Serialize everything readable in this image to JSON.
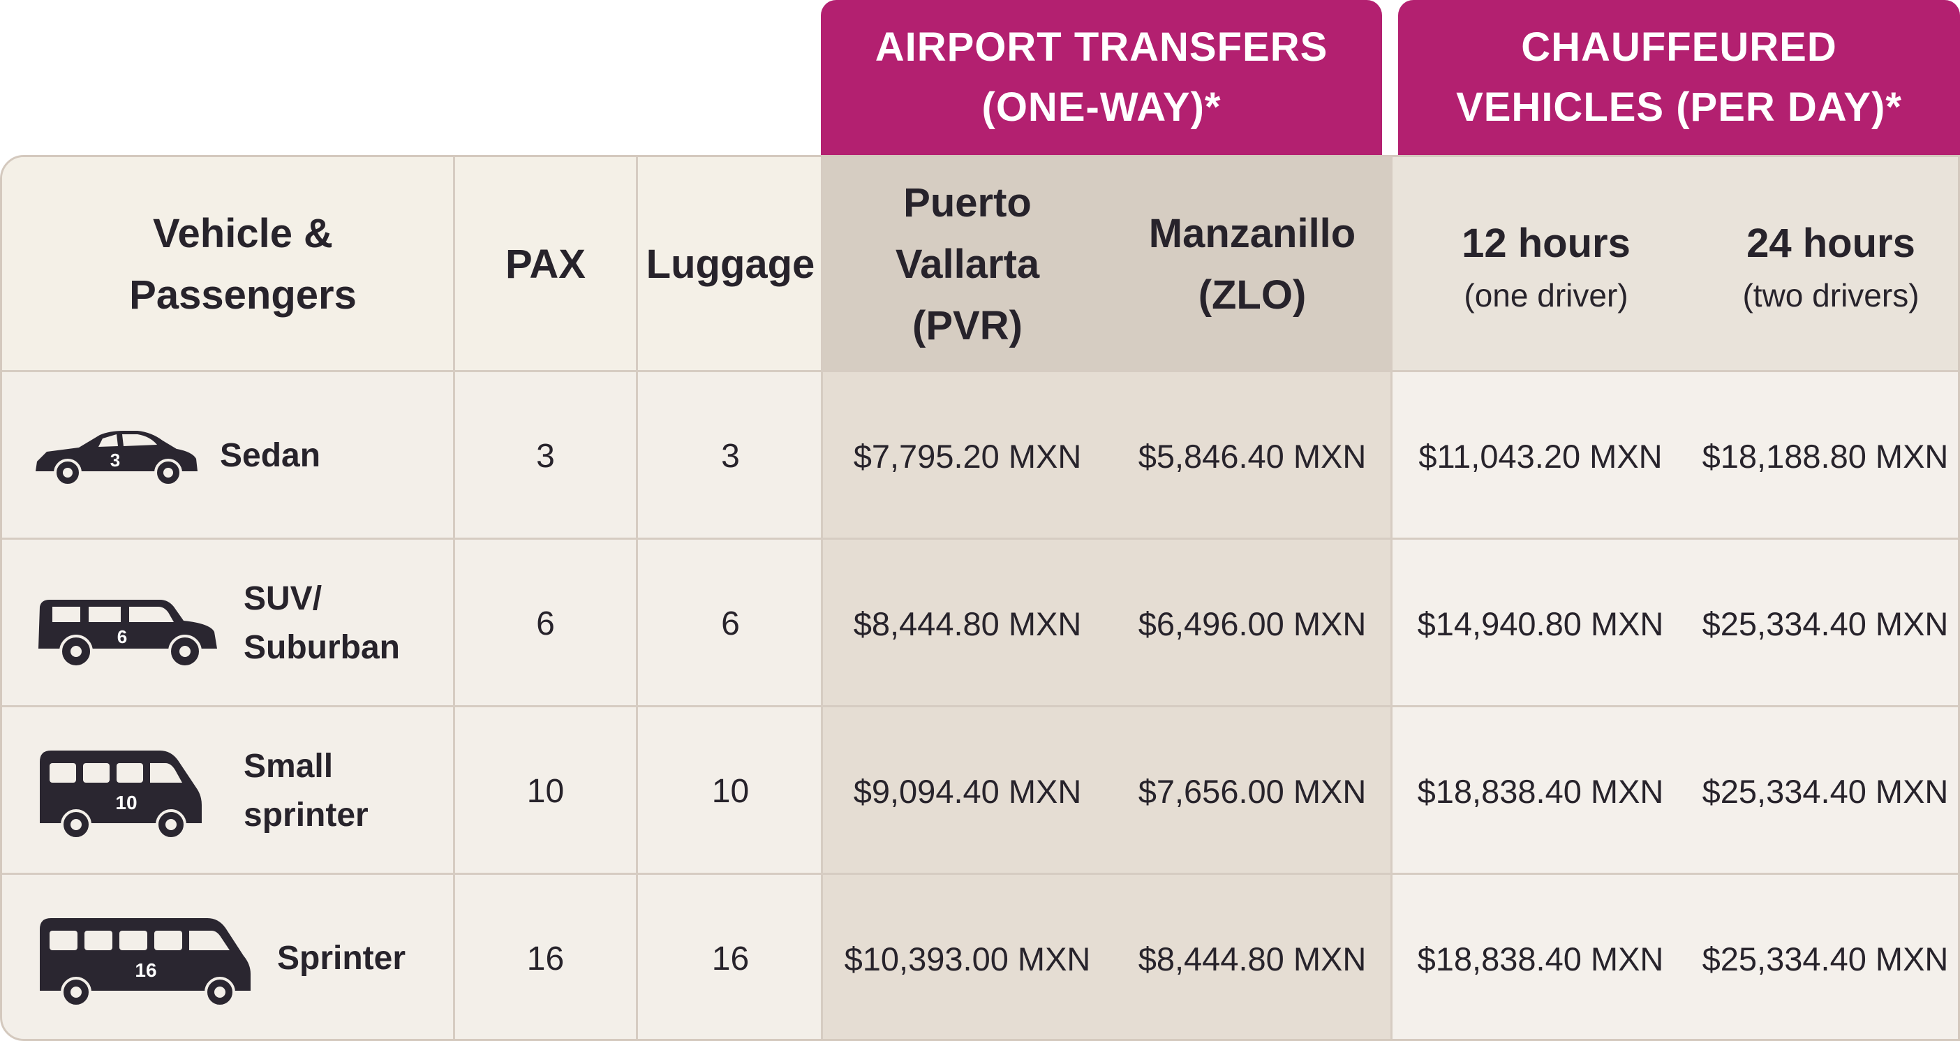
{
  "header_bands": {
    "airport": {
      "line1": "AIRPORT TRANSFERS",
      "line2": "(ONE-WAY)*"
    },
    "chauffeured": {
      "line1": "CHAUFFEURED",
      "line2": "VEHICLES (PER DAY)*"
    }
  },
  "columns": {
    "vehicle": {
      "line1": "Vehicle &",
      "line2": "Passengers"
    },
    "pax": "PAX",
    "luggage": "Luggage",
    "pvr": {
      "line1": "Puerto",
      "line2": "Vallarta",
      "line3": "(PVR)"
    },
    "zlo": {
      "line1": "Manzanillo",
      "line2": "(ZLO)"
    },
    "h12": {
      "title": "12 hours",
      "sub": "(one driver)"
    },
    "h24": {
      "title": "24 hours",
      "sub": "(two drivers)"
    }
  },
  "rows": [
    {
      "icon": "sedan-icon",
      "icon_number": "3",
      "name_line1": "Sedan",
      "name_line2": "",
      "pax": "3",
      "luggage": "3",
      "pvr": "$7,795.20 MXN",
      "zlo": "$5,846.40 MXN",
      "h12": "$11,043.20 MXN",
      "h24": "$18,188.80 MXN"
    },
    {
      "icon": "suv-icon",
      "icon_number": "6",
      "name_line1": "SUV/",
      "name_line2": "Suburban",
      "pax": "6",
      "luggage": "6",
      "pvr": "$8,444.80 MXN",
      "zlo": "$6,496.00 MXN",
      "h12": "$14,940.80 MXN",
      "h24": "$25,334.40 MXN"
    },
    {
      "icon": "small-sprinter-icon",
      "icon_number": "10",
      "name_line1": "Small",
      "name_line2": "sprinter",
      "pax": "10",
      "luggage": "10",
      "pvr": "$9,094.40 MXN",
      "zlo": "$7,656.00 MXN",
      "h12": "$18,838.40 MXN",
      "h24": "$25,334.40 MXN"
    },
    {
      "icon": "sprinter-icon",
      "icon_number": "16",
      "name_line1": "Sprinter",
      "name_line2": "",
      "pax": "16",
      "luggage": "16",
      "pvr": "$10,393.00 MXN",
      "zlo": "$8,444.80 MXN",
      "h12": "$18,838.40 MXN",
      "h24": "$25,334.40 MXN"
    }
  ],
  "colors": {
    "band": "#b32070",
    "header_airport": "#d6cdc2",
    "header_chauffeured": "#e9e3da",
    "body_airport": "#e5ddd3",
    "body_chauffeured": "#f4f0eb",
    "body_left": "#f3efe9",
    "header_left": "#f4f0e7",
    "text": "#27232b"
  }
}
